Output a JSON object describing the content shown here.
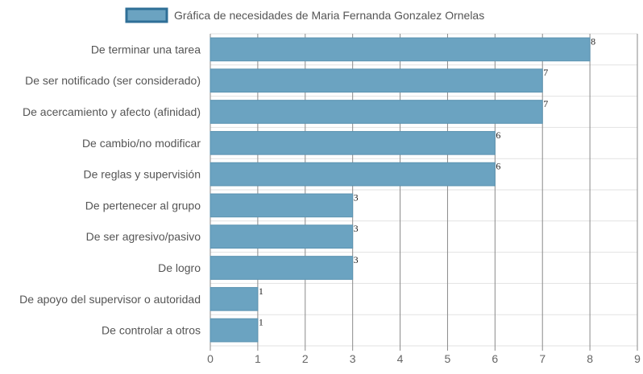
{
  "chart_data": {
    "type": "bar",
    "orientation": "horizontal",
    "categories": [
      "De terminar una tarea",
      "De ser notificado (ser considerado)",
      "De acercamiento y afecto (afinidad)",
      "De cambio/no modificar",
      "De reglas y supervisión",
      "De pertenecer al grupo",
      "De ser agresivo/pasivo",
      "De logro",
      "De apoyo del supervisor o autoridad",
      "De controlar a otros"
    ],
    "series": [
      {
        "name": "Gráfica de necesidades de Maria Fernanda Gonzalez Ornelas",
        "values": [
          8,
          7,
          7,
          6,
          6,
          3,
          3,
          3,
          1,
          1
        ]
      }
    ],
    "xlim": [
      0,
      9
    ],
    "x_ticks": [
      "0",
      "1",
      "2",
      "3",
      "4",
      "5",
      "6",
      "7",
      "8",
      "9"
    ],
    "grid": true,
    "legend_position": "top",
    "data_labels": true
  },
  "colors": {
    "bar_fill": "#6ba3c1",
    "bar_stroke": "#5b93b1",
    "legend_stroke": "#2f6f97",
    "grid_vertical": "#8a8a8a",
    "grid_horizontal": "#e2e2e2"
  }
}
